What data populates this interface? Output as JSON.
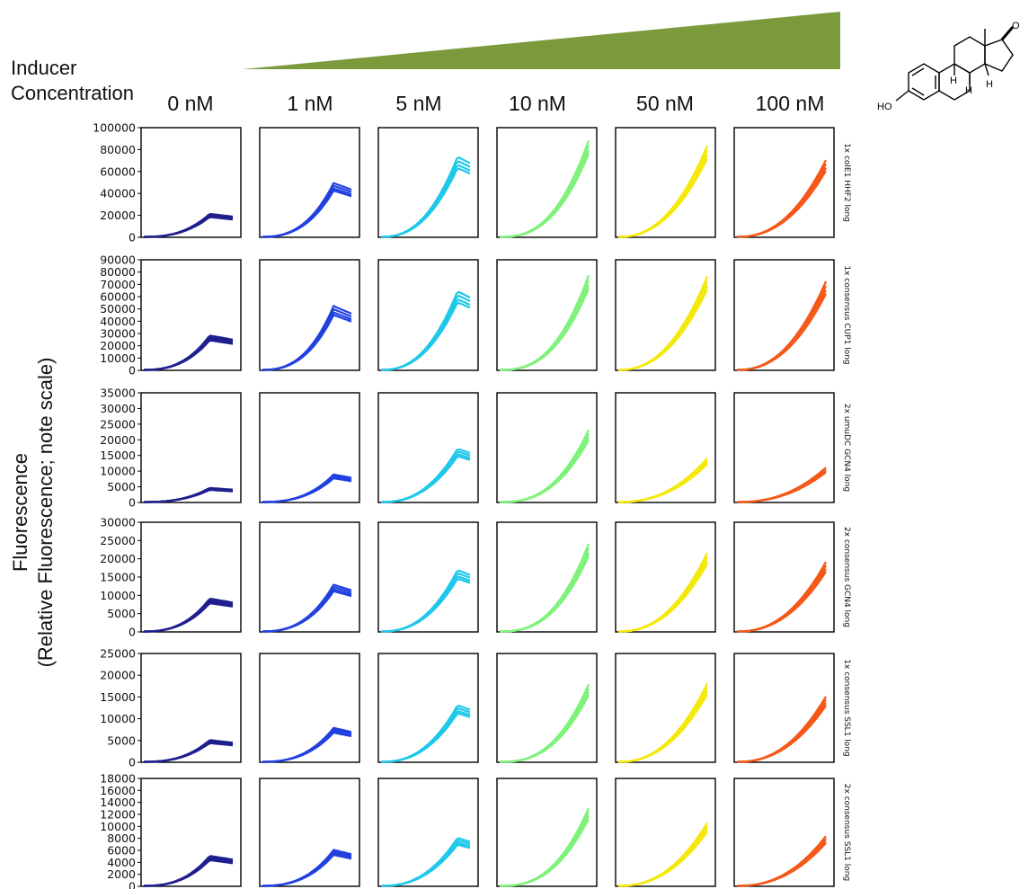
{
  "header": {
    "inducer_label_line1": "Inducer",
    "inducer_label_line2": "Concentration",
    "wedge_color": "#7a9a3c"
  },
  "molecule": {
    "labels": [
      "OH",
      "HO",
      "H",
      "H",
      "H"
    ]
  },
  "y_axis_label": {
    "line1": "Fluorescence",
    "line2": "(Relative Fluorescence; note scale)"
  },
  "columns": [
    {
      "label": "0 nM",
      "color": "#1f1f8f"
    },
    {
      "label": "1 nM",
      "color": "#2140e0"
    },
    {
      "label": "5 nM",
      "color": "#1ec8ea"
    },
    {
      "label": "10 nM",
      "color": "#7ef27a"
    },
    {
      "label": "50 nM",
      "color": "#f5e80c"
    },
    {
      "label": "100 nM",
      "color": "#f55818"
    }
  ],
  "chart_data": {
    "type": "line",
    "layout": "small-multiples grid (6 rows x 6 columns), shared y-axis per row, no x-axis tick labels",
    "rows": [
      {
        "label": "1x colE1 HHF2 long",
        "ylim": [
          0,
          100000
        ],
        "yticks": [
          "0",
          "20000",
          "40000",
          "60000",
          "80000",
          "100000"
        ],
        "peaks": [
          21000,
          49000,
          73000,
          88000,
          83000,
          70000
        ]
      },
      {
        "label": "1x consensus CUP1 long",
        "ylim": [
          0,
          90000
        ],
        "yticks": [
          "0",
          "10000",
          "20000",
          "30000",
          "40000",
          "50000",
          "60000",
          "70000",
          "80000",
          "90000"
        ],
        "peaks": [
          28000,
          52000,
          64000,
          77000,
          76000,
          72000
        ]
      },
      {
        "label": "2x umuDC GCN4 long",
        "ylim": [
          0,
          35000
        ],
        "yticks": [
          "0",
          "5000",
          "10000",
          "15000",
          "20000",
          "25000",
          "30000",
          "35000"
        ],
        "peaks": [
          4500,
          8800,
          17000,
          23000,
          14000,
          11000
        ]
      },
      {
        "label": "2x consensus GCN4 long",
        "ylim": [
          0,
          30000
        ],
        "yticks": [
          "0",
          "5000",
          "10000",
          "15000",
          "20000",
          "25000",
          "30000"
        ],
        "peaks": [
          9000,
          12800,
          16800,
          24000,
          21500,
          19000
        ]
      },
      {
        "label": "1x consensus SSL1 long",
        "ylim": [
          0,
          25000
        ],
        "yticks": [
          "0",
          "5000",
          "10000",
          "15000",
          "20000",
          "25000"
        ],
        "peaks": [
          5000,
          7800,
          13000,
          17800,
          18000,
          15000
        ]
      },
      {
        "label": "2x consensus SSL1 long",
        "ylim": [
          0,
          18000
        ],
        "yticks": [
          "0",
          "2000",
          "4000",
          "6000",
          "8000",
          "10000",
          "12000",
          "14000",
          "16000",
          "18000"
        ],
        "peaks": [
          5000,
          6000,
          8000,
          13000,
          10500,
          8300
        ]
      }
    ]
  }
}
